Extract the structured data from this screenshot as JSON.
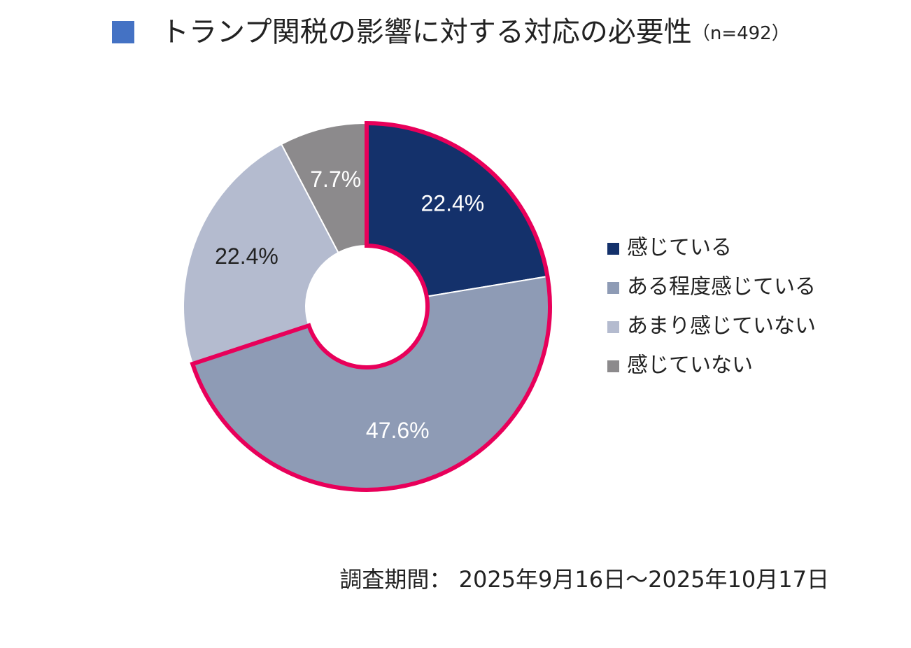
{
  "chart_data": {
    "type": "donut",
    "title": "トランプ関税の影響に対する対応の必要性",
    "subtitle": "（n=492）",
    "categories": [
      "感じている",
      "ある程度感じている",
      "あまり感じていない",
      "感じていない"
    ],
    "values": [
      22.4,
      47.6,
      22.4,
      7.7
    ],
    "value_labels": [
      "22.4%",
      "47.6%",
      "22.4%",
      "7.7%"
    ],
    "colors": [
      "#14316b",
      "#8e9bb5",
      "#b4bbcf",
      "#8c8a8c"
    ],
    "legend": "right",
    "footnote": "調査期間： 2025年9月16日～2025年10月17日"
  }
}
